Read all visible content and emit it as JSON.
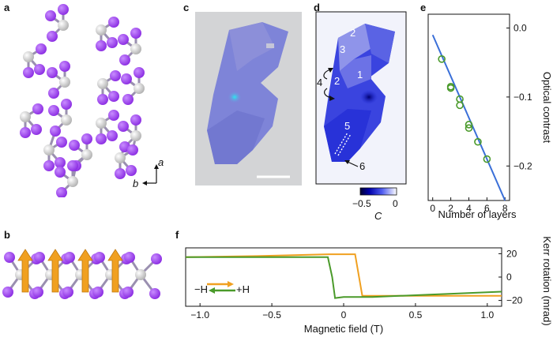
{
  "panels": {
    "a": "a",
    "b": "b",
    "c": "c",
    "d": "d",
    "e": "e",
    "f": "f"
  },
  "panel_a": {
    "axis_a": "a",
    "axis_b": "b"
  },
  "panel_d": {
    "layer_labels": [
      "2",
      "3",
      "1",
      "2",
      "4",
      "5",
      "6"
    ],
    "colorbar": {
      "min_label": "−0.5",
      "max_label": "0",
      "label": "C"
    }
  },
  "colors": {
    "iodine": "#8a2be2",
    "chromium": "#b0b0b0",
    "fit_line": "#3a6fd8",
    "data_points": "#4a9a2a",
    "trace_up": "#f0a020",
    "trace_down": "#4a9a2a",
    "spin_arrow": "#f0a020"
  },
  "chart_data": [
    {
      "panel": "e",
      "type": "scatter",
      "xlabel": "Number of layers",
      "ylabel": "Optical contrast",
      "xlim": [
        -0.5,
        8.5
      ],
      "ylim": [
        -0.25,
        0.02
      ],
      "xticks": [
        "0",
        "2",
        "4",
        "6",
        "8"
      ],
      "yticks": [
        "0.0",
        "−0.1",
        "−0.2"
      ],
      "x": [
        1,
        2,
        2,
        3,
        3,
        4,
        4,
        5,
        6
      ],
      "y": [
        -0.045,
        -0.085,
        -0.087,
        -0.103,
        -0.112,
        -0.14,
        -0.145,
        -0.165,
        -0.19
      ],
      "fit_line": {
        "x": [
          0,
          8
        ],
        "y": [
          -0.01,
          -0.25
        ]
      }
    },
    {
      "panel": "f",
      "type": "line",
      "xlabel": "Magnetic field (T)",
      "ylabel": "Kerr rotation (mrad)",
      "xlim": [
        -1.1,
        1.1
      ],
      "ylim": [
        -25,
        25
      ],
      "xticks": [
        "−1.0",
        "−0.5",
        "0",
        "0.5",
        "1.0"
      ],
      "yticks": [
        "20",
        "0",
        "−20"
      ],
      "legend": {
        "left_label": "−H",
        "right_label": "+H"
      },
      "series": [
        {
          "x": [
            -1.1,
            -0.6,
            -0.1,
            0.0,
            0.08,
            0.1,
            0.13,
            1.1
          ],
          "y": [
            17,
            18,
            19.5,
            19.5,
            19.5,
            5,
            -16,
            -16
          ]
        },
        {
          "x": [
            1.1,
            0.6,
            0.2,
            0.0,
            -0.06,
            -0.08,
            -0.11,
            -1.1
          ],
          "y": [
            -12.5,
            -15,
            -17,
            -17,
            -18,
            0,
            17,
            17
          ]
        }
      ]
    }
  ]
}
